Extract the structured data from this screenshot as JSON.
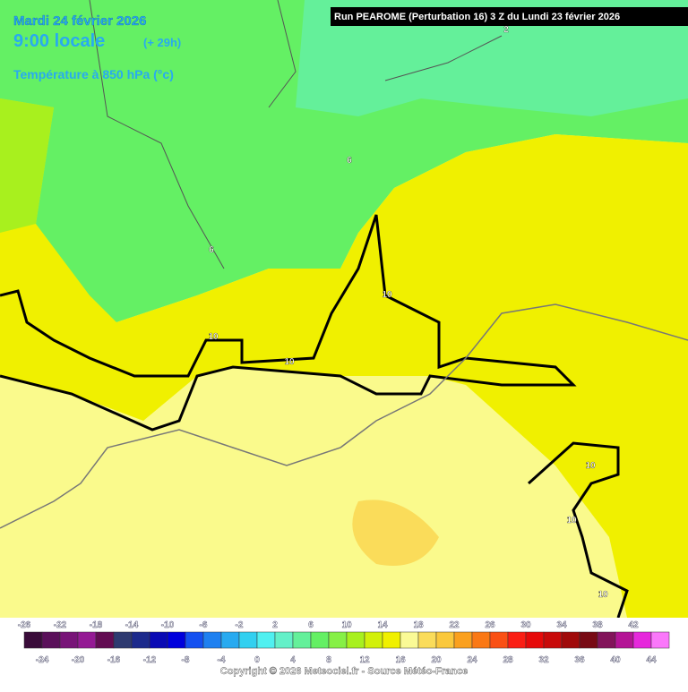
{
  "header": {
    "date": "Mardi 24 février 2026",
    "time": "9:00 locale",
    "lead": "(+ 29h)",
    "field": "Température à 850 hPa (°c)",
    "run": "Run PEAROME (Perturbation 16) 3 Z du Lundi 23 février 2026"
  },
  "contour_labels": [
    "2",
    "6",
    "6",
    "10",
    "10",
    "10",
    "10",
    "10",
    "10"
  ],
  "legend": {
    "labels": [
      -26,
      -24,
      -22,
      -20,
      -18,
      -16,
      -14,
      -12,
      -10,
      -8,
      -6,
      -4,
      -2,
      0,
      2,
      4,
      6,
      8,
      10,
      12,
      14,
      16,
      18,
      20,
      22,
      24,
      26,
      28,
      30,
      32,
      34,
      36,
      38,
      40,
      42,
      44
    ],
    "colors": [
      "#3a0c3a",
      "#5a105a",
      "#781478",
      "#941a94",
      "#620c52",
      "#2e3a70",
      "#1c2a8c",
      "#0a0ab4",
      "#0000dc",
      "#1450f0",
      "#1e80f0",
      "#28aaf0",
      "#32d0f0",
      "#50f0f0",
      "#64f0c8",
      "#64f09a",
      "#64f064",
      "#86f046",
      "#a8f01e",
      "#d2f00a",
      "#f0f000",
      "#fafa96",
      "#fadc5a",
      "#fac83c",
      "#faa01e",
      "#fa7814",
      "#fa5014",
      "#fa1e14",
      "#e60a0a",
      "#c80a0a",
      "#a00a0a",
      "#780a14",
      "#82145a",
      "#b41496",
      "#e628dc",
      "#fa78fa"
    ]
  },
  "footer": {
    "copyright": "Copyright © 2026 Meteociel.fr - Source Météo-France"
  }
}
